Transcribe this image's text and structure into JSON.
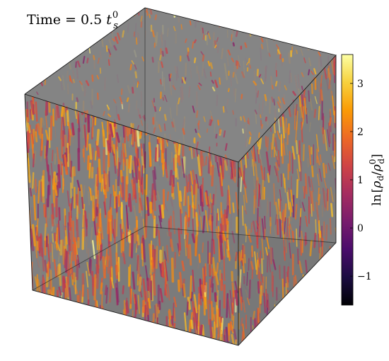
{
  "annotation": {
    "time_label": "Time = 0.5 t",
    "time_label_parts": {
      "prefix": "Time = 0.5 ",
      "var": "t",
      "subscript": "s",
      "superscript": "0"
    }
  },
  "colorbar": {
    "label": "ln[ρd/ρd0]",
    "label_parts": {
      "func": "ln",
      "var": "ρ",
      "subscript": "d",
      "superscript": "0"
    },
    "ticks": [
      {
        "value": 3,
        "text": "3"
      },
      {
        "value": 2,
        "text": "2"
      },
      {
        "value": 1,
        "text": "1"
      },
      {
        "value": 0,
        "text": "0"
      },
      {
        "value": -1,
        "text": "−1"
      }
    ],
    "range": [
      -1.6,
      3.6
    ],
    "colormap": "inferno",
    "colormap_stops": [
      "#000004",
      "#1b0c41",
      "#4a0c6b",
      "#781c6d",
      "#a52c60",
      "#cf4446",
      "#ed6925",
      "#fb9b06",
      "#f7d13d",
      "#fcffa4"
    ]
  },
  "cube": {
    "face_color": "#808080",
    "edge_color": "#1a1a1a"
  }
}
